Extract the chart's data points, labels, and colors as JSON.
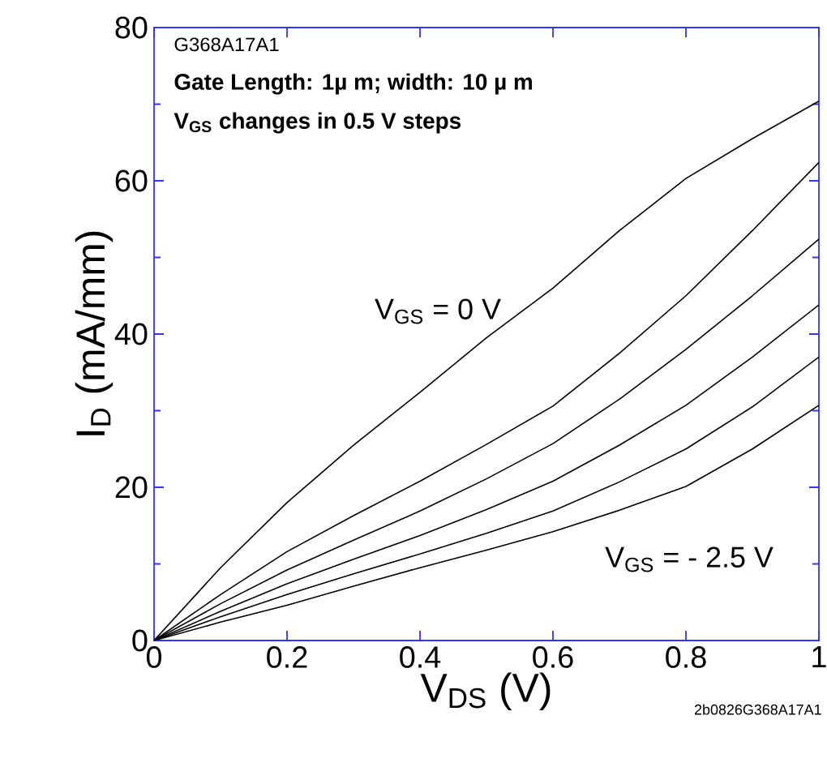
{
  "chart_data": {
    "type": "line",
    "xlabel": "V$_{DS}$ (V)",
    "ylabel": "I$_{D}$ (mA/mm)",
    "x": [
      0,
      0.1,
      0.2,
      0.3,
      0.4,
      0.5,
      0.6,
      0.7,
      0.8,
      0.9,
      1
    ],
    "series": [
      {
        "color": "#000000",
        "values": [
          0,
          9.5,
          18,
          25.5,
          32.4,
          39.5,
          46,
          53.5,
          60.3,
          65.5,
          70.4
        ]
      },
      {
        "color": "#000000",
        "values": [
          0,
          6,
          11.6,
          16.3,
          20.8,
          25.6,
          30.6,
          37.5,
          45,
          53.5,
          62.4
        ]
      },
      {
        "color": "#000000",
        "values": [
          0,
          4.8,
          9.2,
          13.1,
          16.9,
          21.1,
          25.7,
          31.5,
          38,
          45,
          52.4
        ]
      },
      {
        "color": "#000000",
        "values": [
          0,
          3.8,
          7.4,
          10.6,
          13.7,
          17.1,
          20.8,
          25.5,
          30.7,
          37,
          43.8
        ]
      },
      {
        "color": "#000000",
        "values": [
          0,
          3.1,
          6,
          8.7,
          11.3,
          14,
          16.9,
          20.7,
          25,
          30.5,
          37
        ]
      },
      {
        "color": "#000000",
        "values": [
          0,
          2.4,
          4.6,
          7.1,
          9.5,
          11.8,
          14.2,
          17,
          20.1,
          25,
          30.7
        ]
      }
    ],
    "xlim": [
      0,
      1
    ],
    "ylim": [
      0,
      80
    ],
    "xticks": [
      0,
      0.2,
      0.4,
      0.6,
      0.8,
      1
    ],
    "yticks": [
      0,
      20,
      40,
      60,
      80
    ],
    "annotations": [
      "G368A17A1",
      "**Gate Length: 1µ m; width: 10 µ m**",
      "**V$_{GS}$ changes in 0.5 V steps**",
      "V$_{GS}$ = 0 V",
      "V$_{GS}$ = - 2.5 V",
      "2b0826G368A17A1"
    ],
    "grid": false,
    "marker": "none",
    "line_style": "solid"
  }
}
